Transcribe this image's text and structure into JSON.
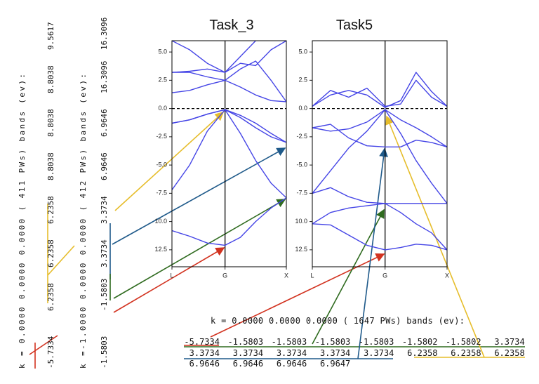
{
  "chart_data": [
    {
      "type": "line",
      "title": "Task_3",
      "x": [
        0,
        0.289,
        0.577,
        0.866,
        1.116,
        1.366,
        1.616,
        1.866
      ],
      "xlim": [
        0,
        1.866
      ],
      "xticks": [
        {
          "value": 0,
          "label": "L"
        },
        {
          "value": 0.866,
          "label": "G"
        },
        {
          "value": 1.866,
          "label": "X"
        }
      ],
      "ylim": [
        -14,
        6
      ],
      "yticks": [
        {
          "value": 5,
          "label": "5.0"
        },
        2.5,
        {
          "value": 0,
          "label": "0.0"
        },
        -2.5,
        {
          "value": -5,
          "label": "-5.0"
        },
        -7.5,
        {
          "value": -10,
          "label": "10.0"
        },
        {
          "value": -12.5,
          "label": "12.5"
        }
      ],
      "hline": 0,
      "series": [
        {
          "color": "#4545e6",
          "values": [
            -10.8,
            -11.3,
            -11.9,
            -12.1,
            -11.4,
            -10.0,
            -8.8,
            -7.9
          ]
        },
        {
          "color": "#4545e6",
          "values": [
            -7.2,
            -5.0,
            -2.0,
            -0.1,
            -2.2,
            -4.6,
            -6.6,
            -7.9
          ]
        },
        {
          "color": "#4545e6",
          "values": [
            -1.3,
            -1.0,
            -0.5,
            -0.1,
            -0.8,
            -1.7,
            -2.5,
            -3.0
          ]
        },
        {
          "color": "#4545e6",
          "values": [
            -1.3,
            -1.0,
            -0.5,
            -0.1,
            -0.6,
            -1.3,
            -2.2,
            -3.0
          ]
        },
        {
          "color": "#4545e6",
          "values": [
            1.4,
            1.6,
            2.1,
            2.5,
            1.9,
            1.2,
            0.7,
            0.6
          ]
        },
        {
          "color": "#4545e6",
          "values": [
            3.2,
            3.2,
            2.8,
            2.5,
            3.5,
            4.2,
            2.5,
            0.6
          ]
        },
        {
          "color": "#4545e6",
          "values": [
            3.2,
            3.3,
            3.5,
            3.2,
            4.0,
            3.8,
            5.2,
            6.0
          ]
        },
        {
          "color": "#4545e6",
          "values": [
            6.0,
            5.2,
            4.0,
            3.2,
            4.6,
            6.0,
            null,
            null
          ]
        }
      ]
    },
    {
      "type": "line",
      "title": "Task5",
      "x": [
        0,
        0.135,
        0.27,
        0.405,
        0.54,
        0.655,
        0.77,
        0.885,
        1
      ],
      "xlim": [
        0,
        1
      ],
      "xticks": [
        {
          "value": 0,
          "label": "L"
        },
        {
          "value": 0.54,
          "label": "G"
        },
        {
          "value": 1,
          "label": "X"
        }
      ],
      "ylim": [
        -14,
        6
      ],
      "yticks": [
        {
          "value": 5,
          "label": "5.0"
        },
        2.5,
        {
          "value": 0,
          "label": "0.0"
        },
        -2.5,
        {
          "value": -5,
          "label": "-5.0"
        },
        -7.5,
        {
          "value": -10,
          "label": "10.0"
        },
        {
          "value": -12.5,
          "label": "12.5"
        }
      ],
      "hline": 0,
      "series": [
        {
          "color": "#4545e6",
          "values": [
            -10.2,
            -10.3,
            -11.2,
            -12.1,
            -12.5,
            -12.3,
            -12.0,
            -12.1,
            -12.5
          ]
        },
        {
          "color": "#4545e6",
          "values": [
            -10.2,
            -9.2,
            -8.8,
            -8.6,
            -8.4,
            -9.2,
            -10.2,
            -11.0,
            -12.5
          ]
        },
        {
          "color": "#4545e6",
          "values": [
            -7.5,
            -7.0,
            -7.8,
            -8.3,
            -8.4,
            -8.4,
            -8.4,
            -8.4,
            -8.4
          ]
        },
        {
          "color": "#4545e6",
          "values": [
            -7.5,
            -5.5,
            -3.5,
            -2.0,
            -0.1,
            -2.2,
            -4.6,
            -6.6,
            -8.4
          ]
        },
        {
          "color": "#4545e6",
          "values": [
            -1.7,
            -1.4,
            -2.6,
            -3.3,
            -3.4,
            -3.4,
            -2.8,
            -3.0,
            -3.4
          ]
        },
        {
          "color": "#4545e6",
          "values": [
            -1.7,
            -2.0,
            -1.8,
            -1.2,
            -0.1,
            -1.0,
            -1.7,
            -2.5,
            -3.4
          ]
        },
        {
          "color": "#4545e6",
          "values": [
            0.2,
            1.6,
            1.0,
            1.8,
            0.2,
            0.4,
            2.5,
            1.0,
            0.2
          ]
        },
        {
          "color": "#4545e6",
          "values": [
            0.2,
            1.2,
            1.6,
            1.2,
            0.1,
            0.7,
            3.2,
            1.5,
            0.2
          ]
        }
      ]
    }
  ],
  "left_outputs": [
    {
      "header": "k = 0.0000 0.0000 0.0000 (   411 PWs)   bands (ev):",
      "values": [
        "-5.7334",
        "6.2358",
        "6.2358",
        "6.2358",
        "8.8038",
        "8.8038",
        "8.8038",
        "9.5617"
      ]
    },
    {
      "header": "k =-1.0000 0.0000 0.0000 (   412 PWs)   bands (ev):",
      "values": [
        "-1.5803",
        "-1.5803",
        "3.3734",
        "3.3734",
        "6.9646",
        "6.9646",
        "16.3096",
        "16.3096"
      ]
    }
  ],
  "bottom_output": {
    "header": "k = 0.0000 0.0000 0.0000 (  1647 PWs)   bands (ev):",
    "rows": [
      [
        "-5.7334",
        "-1.5803",
        "-1.5803",
        "-1.5803",
        "-1.5803",
        "-1.5802",
        "-1.5802",
        "3.3734"
      ],
      [
        "3.3734",
        "3.3734",
        "3.3734",
        "3.3734",
        "3.3734",
        "6.2358",
        "6.2358",
        "6.2358"
      ],
      [
        "6.9646",
        "6.9646",
        "6.9646",
        "6.9647"
      ]
    ]
  }
}
